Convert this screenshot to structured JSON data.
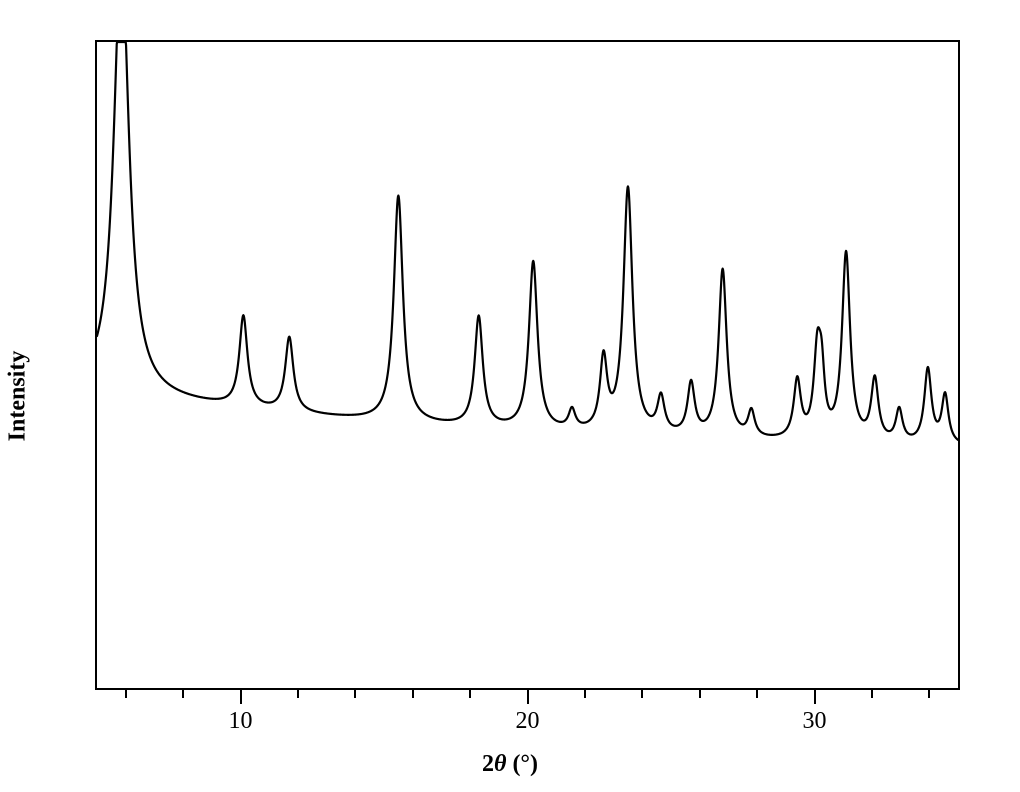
{
  "xrd_chart": {
    "type": "line",
    "xlabel_html": "2<span class='theta'>θ</span> (°)",
    "ylabel": "Intensity",
    "label_fontsize": 24,
    "tick_label_fontsize": 24,
    "xlim": [
      5,
      35
    ],
    "ylim": [
      0,
      100
    ],
    "x_major_ticks": [
      10,
      20,
      30
    ],
    "x_minor_tick_step": 2,
    "line_color": "#000000",
    "line_width": 2.2,
    "background_color": "#ffffff",
    "border_color": "#000000",
    "baseline_left_y": 46,
    "baseline_right_y": 36,
    "peaks": [
      {
        "x": 5.85,
        "height": 68.0,
        "hw": 0.32
      },
      {
        "x": 10.1,
        "height": 14.0,
        "hw": 0.17
      },
      {
        "x": 11.7,
        "height": 11.5,
        "hw": 0.17
      },
      {
        "x": 15.5,
        "height": 35.0,
        "hw": 0.19
      },
      {
        "x": 18.3,
        "height": 17.0,
        "hw": 0.17
      },
      {
        "x": 20.2,
        "height": 26.0,
        "hw": 0.18
      },
      {
        "x": 21.55,
        "height": 3.0,
        "hw": 0.14
      },
      {
        "x": 22.65,
        "height": 11.0,
        "hw": 0.15
      },
      {
        "x": 23.5,
        "height": 38.0,
        "hw": 0.19
      },
      {
        "x": 24.65,
        "height": 5.5,
        "hw": 0.15
      },
      {
        "x": 25.7,
        "height": 8.0,
        "hw": 0.15
      },
      {
        "x": 26.8,
        "height": 26.0,
        "hw": 0.17
      },
      {
        "x": 27.8,
        "height": 4.0,
        "hw": 0.14
      },
      {
        "x": 29.4,
        "height": 9.0,
        "hw": 0.15
      },
      {
        "x": 30.1,
        "height": 13.0,
        "hw": 0.15
      },
      {
        "x": 30.25,
        "height": 8.0,
        "hw": 0.12
      },
      {
        "x": 31.1,
        "height": 29.0,
        "hw": 0.17
      },
      {
        "x": 32.1,
        "height": 9.5,
        "hw": 0.15
      },
      {
        "x": 32.95,
        "height": 5.0,
        "hw": 0.14
      },
      {
        "x": 33.95,
        "height": 11.5,
        "hw": 0.15
      },
      {
        "x": 34.55,
        "height": 7.5,
        "hw": 0.14
      }
    ]
  }
}
